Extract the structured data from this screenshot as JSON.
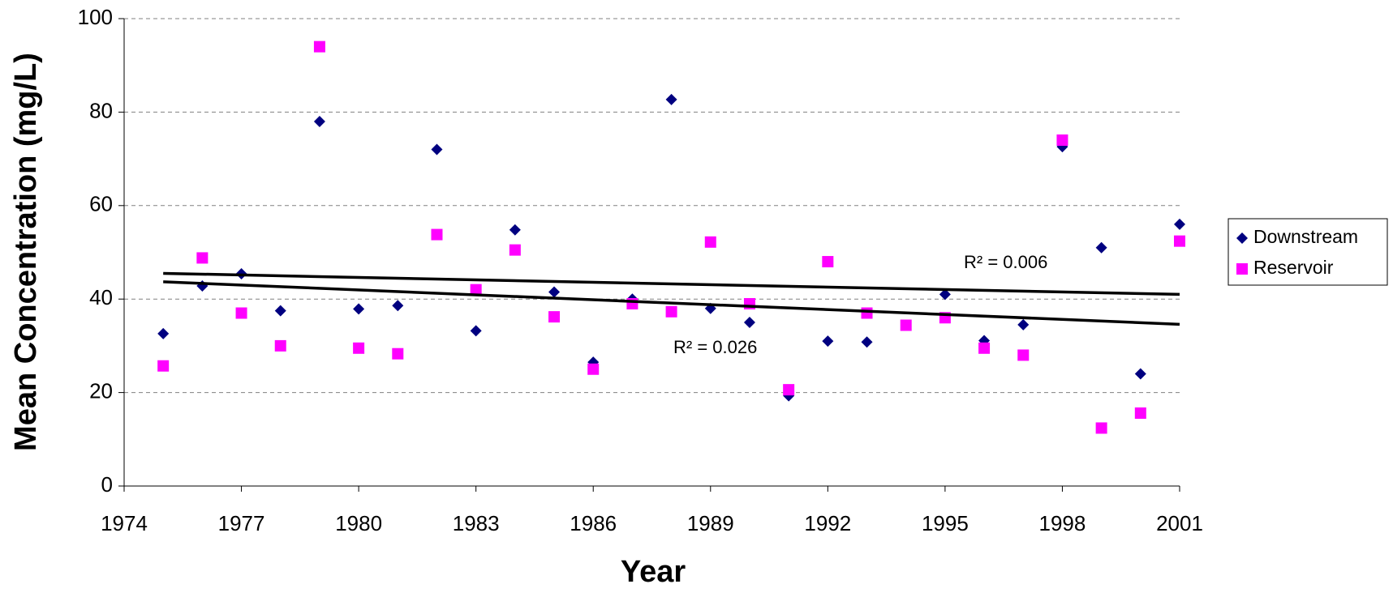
{
  "chart_data": {
    "type": "scatter",
    "x_label": "Year",
    "y_label": "Mean Concentration (mg/L)",
    "x": [
      1975,
      1976,
      1977,
      1978,
      1979,
      1980,
      1981,
      1982,
      1983,
      1984,
      1985,
      1986,
      1987,
      1988,
      1989,
      1990,
      1991,
      1992,
      1993,
      1994,
      1995,
      1996,
      1997,
      1998,
      1999,
      2000,
      2001
    ],
    "series": [
      {
        "name": "Downstream",
        "color": "#000080",
        "marker": "diamond",
        "values": [
          32.6,
          42.8,
          45.4,
          37.5,
          78,
          37.9,
          38.6,
          72,
          33.2,
          54.8,
          41.5,
          26.5,
          40,
          82.7,
          38,
          35,
          19.3,
          31,
          30.8,
          null,
          41,
          31.1,
          34.5,
          72.6,
          51,
          24,
          56
        ]
      },
      {
        "name": "Reservoir",
        "color": "#ff00ff",
        "marker": "square",
        "values": [
          25.7,
          48.8,
          37,
          30,
          94,
          29.5,
          28.3,
          53.8,
          42,
          50.5,
          36.2,
          25,
          39,
          37.3,
          52.2,
          39,
          20.6,
          48,
          37,
          34.4,
          36,
          29.5,
          28,
          74,
          12.4,
          15.6,
          52.4
        ]
      }
    ],
    "trendlines": [
      {
        "label": "R² = 0.006",
        "x": [
          1975,
          2001
        ],
        "values": [
          45.5,
          41
        ],
        "color": "#000000"
      },
      {
        "label": "R² = 0.026",
        "x": [
          1975,
          2001
        ],
        "values": [
          43.7,
          34.6
        ],
        "color": "#000000"
      }
    ],
    "xlim": [
      1974,
      2001
    ],
    "xticks": [
      1974,
      1977,
      1980,
      1983,
      1986,
      1989,
      1992,
      1995,
      1998,
      2001
    ],
    "ylim": [
      0,
      100
    ],
    "yticks": [
      0,
      20,
      40,
      60,
      80,
      100
    ],
    "grid": true,
    "legend": "right"
  }
}
